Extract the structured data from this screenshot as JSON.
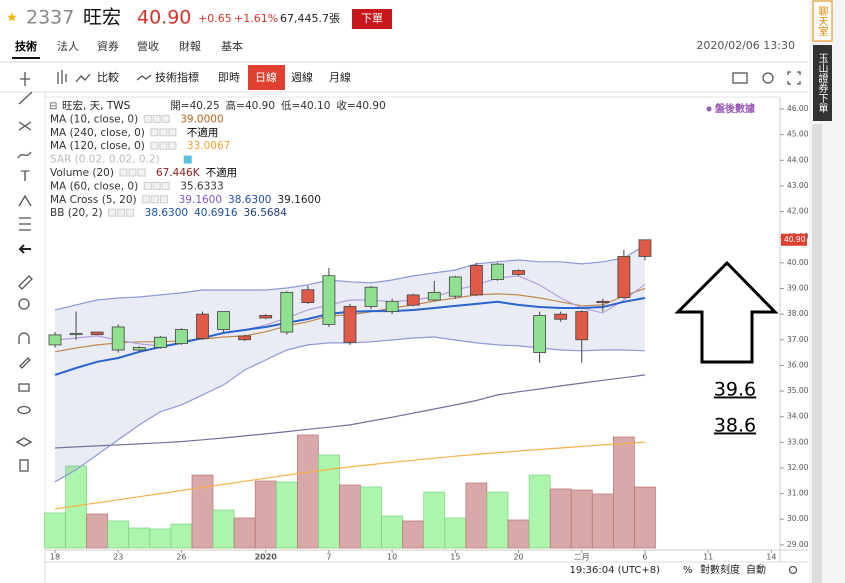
{
  "header": {
    "code": "2337",
    "name": "旺宏",
    "price": "40.90",
    "change": "+0.65",
    "change_pct": "+1.61%",
    "volume": "67,445.7張",
    "order_button": "下單"
  },
  "tabs": [
    "技術",
    "法人",
    "資券",
    "營收",
    "財報",
    "基本"
  ],
  "datetime": "2020/02/06 13:30",
  "side_panel": [
    "聊天室",
    "玉山證券下單"
  ],
  "toolbar": {
    "compare": "比較",
    "indicators": "技術指標",
    "realtime": "即時",
    "periods": [
      "日線",
      "週線",
      "月線"
    ]
  },
  "status_bar": {
    "time": "19:36:04 (UTC+8)",
    "percent": "%",
    "log_scale": "對數刻度",
    "auto": "自動"
  },
  "annotation": {
    "labels": [
      "39.6",
      "38.6"
    ]
  },
  "chart_data": {
    "type": "candlestick",
    "symbol": "旺宏, 天, TWS",
    "ohlc_readout": [
      "開=40.25",
      "高=40.90",
      "低=40.10",
      "收=40.90"
    ],
    "badge": "盤後數據",
    "up_color": "#e05a48",
    "down_color": "#8fe08f",
    "volume_up_color": "#d9a9a9",
    "volume_down_color": "#adf5ad",
    "categories": [
      "18",
      null,
      null,
      "23",
      null,
      null,
      "26",
      null,
      null,
      null,
      "2020",
      null,
      null,
      "7",
      null,
      null,
      "10",
      null,
      null,
      "15",
      null,
      null,
      "20",
      null,
      null,
      "二月",
      null,
      null,
      "6",
      null,
      null,
      "11",
      null,
      null,
      "14"
    ],
    "open": [
      37.19,
      37.25,
      37.2,
      37.5,
      36.7,
      37.1,
      37.4,
      37.05,
      38.1,
      37.0,
      37.85,
      38.85,
      38.45,
      39.5,
      36.9,
      39.05,
      38.5,
      38.35,
      38.85,
      39.45,
      38.75,
      39.95,
      39.55,
      37.95,
      37.8,
      37.0,
      38.45,
      38.65,
      40.25,
      null,
      null,
      null,
      null,
      null,
      null
    ],
    "high": [
      37.3,
      38.1,
      37.3,
      37.6,
      36.75,
      37.15,
      37.45,
      38.1,
      38.1,
      37.2,
      38.0,
      38.9,
      39.1,
      39.8,
      38.4,
      39.1,
      38.6,
      38.8,
      39.3,
      39.5,
      40.0,
      40.0,
      39.75,
      38.1,
      38.1,
      38.15,
      38.6,
      40.5,
      40.9,
      null,
      null,
      null,
      null,
      null,
      null
    ],
    "low": [
      36.7,
      37.0,
      37.2,
      36.5,
      36.55,
      36.65,
      36.8,
      37.0,
      37.3,
      36.95,
      37.8,
      37.2,
      38.4,
      37.5,
      36.8,
      38.2,
      38.0,
      38.3,
      38.5,
      38.6,
      38.7,
      39.3,
      39.5,
      36.1,
      37.7,
      36.1,
      38.1,
      38.6,
      40.1,
      null,
      null,
      null,
      null,
      null,
      null
    ],
    "close": [
      36.8,
      37.2,
      37.3,
      36.6,
      36.6,
      36.7,
      36.85,
      38.0,
      37.4,
      37.15,
      37.95,
      37.3,
      38.95,
      37.6,
      38.3,
      38.3,
      38.1,
      38.75,
      38.55,
      38.7,
      39.9,
      39.35,
      39.7,
      36.5,
      38.0,
      38.1,
      38.5,
      40.25,
      40.9,
      null,
      null,
      null,
      null,
      null,
      null
    ],
    "volume": [
      38.7,
      90.7,
      37.6,
      29.9,
      22.1,
      21,
      26.5,
      80.7,
      42,
      33.2,
      74.1,
      73,
      125,
      102.9,
      69.7,
      67.5,
      35.4,
      29.9,
      61.9,
      33.2,
      71.9,
      61.9,
      31,
      80.7,
      65.3,
      64.1,
      59.7,
      122.8,
      67.446,
      null,
      null,
      null,
      null,
      null,
      null
    ],
    "indicators": [
      {
        "name": "MA (10, close, 0)",
        "readouts": [
          {
            "text": "39.0000",
            "color": "#b5651d"
          }
        ],
        "lines": [
          {
            "color": "#c08a50",
            "values": [
              36.53,
              36.68,
              36.8,
              36.88,
              36.92,
              36.92,
              36.96,
              37.03,
              37.11,
              37.15,
              37.31,
              37.54,
              37.7,
              37.93,
              37.97,
              38.09,
              38.24,
              38.36,
              38.51,
              38.63,
              38.75,
              38.79,
              38.75,
              38.63,
              38.48,
              38.32,
              38.36,
              38.71,
              39.0,
              null,
              null,
              null,
              null,
              null,
              null
            ]
          }
        ]
      },
      {
        "name": "MA (240, close, 0)",
        "readouts": [
          {
            "text": "不適用",
            "color": "#000000"
          }
        ],
        "lines": []
      },
      {
        "name": "MA (120, close, 0)",
        "readouts": [
          {
            "text": "33.0067",
            "color": "#f0a030"
          }
        ],
        "lines": [
          {
            "color": "#f7b04a",
            "values": [
              30.4,
              30.52,
              30.64,
              30.76,
              30.88,
              31.0,
              31.12,
              31.24,
              31.36,
              31.48,
              31.6,
              31.72,
              31.83,
              31.94,
              32.04,
              32.13,
              32.22,
              32.3,
              32.38,
              32.46,
              32.53,
              32.6,
              32.66,
              32.72,
              32.78,
              32.84,
              32.9,
              32.95,
              33.01,
              null,
              null,
              null,
              null,
              null,
              null
            ]
          }
        ]
      },
      {
        "name": "SAR (0.02, 0.02, 0.2)",
        "disabled": true,
        "readouts": [],
        "lines": []
      },
      {
        "name": "Volume (20)",
        "readouts": [
          {
            "text": "67.446K",
            "color": "#8b1a1a"
          },
          {
            "text": "不適用",
            "color": "#000000"
          }
        ],
        "lines": []
      },
      {
        "name": "MA (60, close, 0)",
        "readouts": [
          {
            "text": "35.6333",
            "color": "#333333"
          }
        ],
        "lines": [
          {
            "color": "#7a6e9c",
            "values": [
              32.78,
              32.82,
              32.86,
              32.9,
              32.94,
              32.98,
              33.03,
              33.1,
              33.17,
              33.25,
              33.33,
              33.42,
              33.51,
              33.59,
              33.68,
              33.83,
              33.98,
              34.14,
              34.3,
              34.46,
              34.63,
              34.85,
              34.97,
              35.08,
              35.2,
              35.31,
              35.42,
              35.52,
              35.63,
              null,
              null,
              null,
              null,
              null,
              null
            ]
          }
        ]
      },
      {
        "name": "MA Cross (5, 20)",
        "readouts": [
          {
            "text": "39.1600",
            "color": "#7e57c2"
          },
          {
            "text": "38.6300",
            "color": "#1e4fa8"
          },
          {
            "text": "39.1600",
            "color": "#222222"
          }
        ],
        "lines": [
          {
            "color": "#b3a0dd",
            "values": [
              36.99,
              37.07,
              37.15,
              36.99,
              36.84,
              36.76,
              36.88,
              37.07,
              37.27,
              37.38,
              37.58,
              37.85,
              38.16,
              38.36,
              38.55,
              38.55,
              38.48,
              38.55,
              38.67,
              38.94,
              39.14,
              39.41,
              39.49,
              39.14,
              38.63,
              38.24,
              38.05,
              38.55,
              39.16,
              null,
              null,
              null,
              null,
              null,
              null
            ]
          }
        ]
      },
      {
        "name": "BB (20, 2)",
        "band_fill": "rgba(140,150,200,0.18)",
        "readouts": [
          {
            "text": "38.6300",
            "color": "#1e4fa8"
          },
          {
            "text": "40.6916",
            "color": "#1e4fa8"
          },
          {
            "text": "36.5684",
            "color": "#1e3f80"
          }
        ],
        "lines": [
          {
            "color": "#2b63d0",
            "width": 2,
            "values": [
              35.63,
              35.9,
              36.14,
              36.29,
              36.53,
              36.72,
              36.88,
              37.07,
              37.27,
              37.38,
              37.5,
              37.66,
              37.81,
              38.01,
              38.09,
              38.12,
              38.12,
              38.16,
              38.24,
              38.32,
              38.4,
              38.48,
              38.36,
              38.28,
              38.24,
              38.24,
              38.28,
              38.48,
              38.63,
              null,
              null,
              null,
              null,
              null,
              null
            ]
          },
          {
            "color": "#8e99d6",
            "values": [
              38.16,
              38.36,
              38.55,
              38.63,
              38.67,
              38.75,
              38.83,
              38.94,
              38.94,
              38.94,
              38.94,
              39.02,
              39.14,
              39.33,
              39.26,
              39.22,
              39.33,
              39.49,
              39.61,
              39.72,
              39.96,
              40.04,
              40.11,
              40.04,
              40.04,
              39.96,
              40.04,
              40.19,
              40.69,
              null,
              null,
              null,
              null,
              null,
              null
            ]
          },
          {
            "color": "#8e99d6",
            "values": [
              31.46,
              31.93,
              32.51,
              33.1,
              33.68,
              34.19,
              34.46,
              34.85,
              35.24,
              35.82,
              36.21,
              36.6,
              36.8,
              36.88,
              36.88,
              36.92,
              36.99,
              37.07,
              37.11,
              36.99,
              36.88,
              36.8,
              36.76,
              36.68,
              36.6,
              36.57,
              36.6,
              36.6,
              36.57,
              null,
              null,
              null,
              null,
              null,
              null
            ]
          }
        ]
      }
    ],
    "ylim": [
      28.8,
      46.47
    ],
    "yticks": [
      {
        "value": 29,
        "label": "29.00"
      },
      {
        "value": 30,
        "label": "30.00"
      },
      {
        "value": 31,
        "label": "31.00"
      },
      {
        "value": 32,
        "label": "32.00"
      },
      {
        "value": 33,
        "label": "33.00"
      },
      {
        "value": 34,
        "label": "34.00"
      },
      {
        "value": 35,
        "label": "35.00"
      },
      {
        "value": 36,
        "label": "36.00"
      },
      {
        "value": 37,
        "label": "37.00"
      },
      {
        "value": 38,
        "label": "38.00"
      },
      {
        "value": 39,
        "label": "39.00"
      },
      {
        "value": 40,
        "label": "40.00"
      },
      {
        "value": 41,
        "label": "41.00"
      },
      {
        "value": 42,
        "label": "42.00"
      },
      {
        "value": 43,
        "label": "43.00"
      },
      {
        "value": 44,
        "label": "44.00"
      },
      {
        "value": 45,
        "label": "45.00"
      },
      {
        "value": 46,
        "label": "46.00"
      }
    ]
  }
}
